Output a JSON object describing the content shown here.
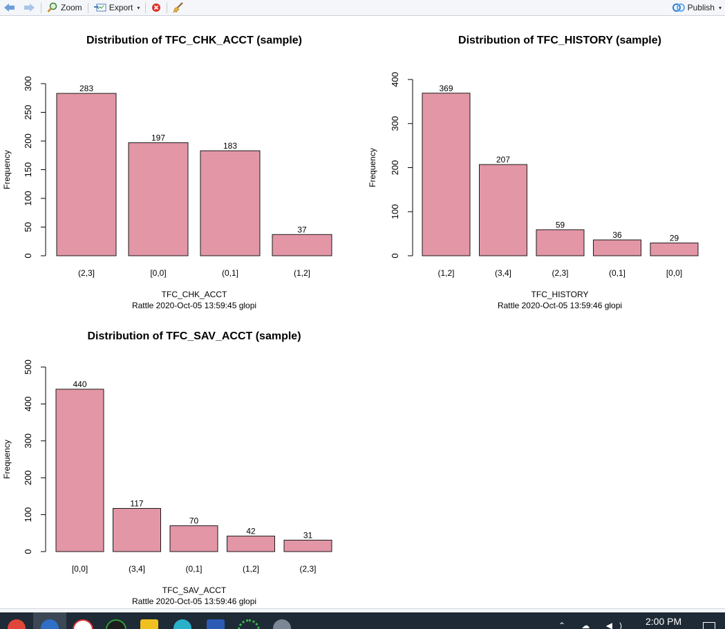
{
  "toolbar": {
    "zoom_label": "Zoom",
    "export_label": "Export",
    "publish_label": "Publish",
    "export_caret": "▾",
    "publish_caret": "▾"
  },
  "colors": {
    "bar_fill": "#e296a6",
    "bar_stroke": "#1a1a1a",
    "axis": "#000000"
  },
  "taskbar": {
    "clock": "2:00 PM"
  },
  "chart_data": [
    {
      "type": "bar",
      "title": "Distribution of TFC_CHK_ACCT (sample)",
      "xlabel": "TFC_CHK_ACCT",
      "sublabel": "Rattle 2020-Oct-05 13:59:45 glopi",
      "ylabel": "Frequency",
      "categories": [
        "(2,3]",
        "[0,0]",
        "(0,1]",
        "(1,2]"
      ],
      "values": [
        283,
        197,
        183,
        37
      ],
      "value_labels": [
        "283",
        "197",
        "183",
        "37"
      ],
      "ylim": [
        0,
        300
      ],
      "yticks": [
        0,
        50,
        100,
        150,
        200,
        250,
        300
      ],
      "ytick_labels": [
        "0",
        "50",
        "100",
        "150",
        "200",
        "250",
        "300"
      ]
    },
    {
      "type": "bar",
      "title": "Distribution of TFC_HISTORY (sample)",
      "xlabel": "TFC_HISTORY",
      "sublabel": "Rattle 2020-Oct-05 13:59:46 glopi",
      "ylabel": "Frequency",
      "categories": [
        "(1,2]",
        "(3,4]",
        "(2,3]",
        "(0,1]",
        "[0,0]"
      ],
      "values": [
        369,
        207,
        59,
        36,
        29
      ],
      "value_labels": [
        "369",
        "207",
        "59",
        "36",
        "29"
      ],
      "ylim": [
        0,
        400
      ],
      "yticks": [
        0,
        100,
        200,
        300,
        400
      ],
      "ytick_labels": [
        "0",
        "100",
        "200",
        "300",
        "400"
      ]
    },
    {
      "type": "bar",
      "title": "Distribution of TFC_SAV_ACCT (sample)",
      "xlabel": "TFC_SAV_ACCT",
      "sublabel": "Rattle 2020-Oct-05 13:59:46 glopi",
      "ylabel": "Frequency",
      "categories": [
        "[0,0]",
        "(3,4]",
        "(0,1]",
        "(1,2]",
        "(2,3]"
      ],
      "values": [
        440,
        117,
        70,
        42,
        31
      ],
      "value_labels": [
        "440",
        "117",
        "70",
        "42",
        "31"
      ],
      "ylim": [
        0,
        500
      ],
      "yticks": [
        0,
        100,
        200,
        300,
        400,
        500
      ],
      "ytick_labels": [
        "0",
        "100",
        "200",
        "300",
        "400",
        "500"
      ]
    }
  ]
}
